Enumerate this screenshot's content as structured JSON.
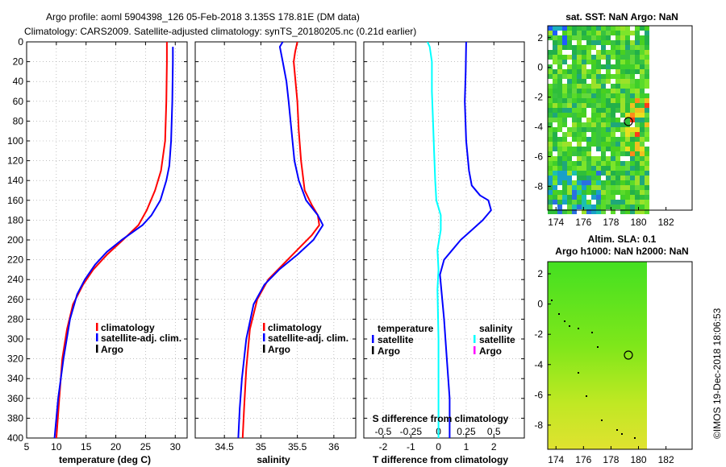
{
  "header": {
    "line1": "Argo profile: aoml 5904398_126 05-Feb-2018 3.135S 178.81E (DM data)",
    "line2": "Climatology: CARS2009. Satellite-adjusted climatology: synTS_20180205.nc (0.21d earlier)"
  },
  "colors": {
    "climatology": "#ff0000",
    "satellite": "#0000ff",
    "argo": "#000000",
    "sal_sat": "#00ffff",
    "sal_argo": "#ff00ff"
  },
  "side_note": "©IMOS 19-Dec-2018 18:06:53",
  "chart_data": [
    {
      "type": "line",
      "id": "temp",
      "xlabel": "temperature (deg C)",
      "ylabel": "",
      "xlim": [
        5,
        32
      ],
      "ylim": [
        400,
        0
      ],
      "xticks": [
        5,
        10,
        15,
        20,
        25,
        30
      ],
      "yticks": [
        0,
        20,
        40,
        60,
        80,
        100,
        120,
        140,
        160,
        180,
        200,
        220,
        240,
        260,
        280,
        300,
        320,
        340,
        360,
        380,
        400
      ],
      "legend": [
        "climatology",
        "satellite-adj. clim.",
        "Argo"
      ],
      "series": [
        {
          "name": "climatology",
          "color": "#ff0000",
          "points": [
            [
              28.6,
              0
            ],
            [
              28.6,
              20
            ],
            [
              28.5,
              60
            ],
            [
              28.3,
              100
            ],
            [
              27.6,
              130
            ],
            [
              26.6,
              150
            ],
            [
              25.2,
              170
            ],
            [
              23.8,
              185
            ],
            [
              21.2,
              200
            ],
            [
              18.5,
              215
            ],
            [
              16.2,
              230
            ],
            [
              14.5,
              245
            ],
            [
              12.8,
              265
            ],
            [
              11.8,
              290
            ],
            [
              11.0,
              320
            ],
            [
              10.5,
              360
            ],
            [
              10.0,
              400
            ]
          ]
        },
        {
          "name": "satellite-adj. clim.",
          "color": "#0000ff",
          "points": [
            [
              29.6,
              5
            ],
            [
              29.6,
              20
            ],
            [
              29.5,
              60
            ],
            [
              29.3,
              100
            ],
            [
              29.0,
              125
            ],
            [
              28.5,
              140
            ],
            [
              27.5,
              160
            ],
            [
              26.0,
              175
            ],
            [
              24.5,
              185
            ],
            [
              21.0,
              200
            ],
            [
              18.5,
              212
            ],
            [
              16.5,
              225
            ],
            [
              14.8,
              240
            ],
            [
              13.5,
              255
            ],
            [
              12.3,
              280
            ],
            [
              11.2,
              320
            ],
            [
              10.3,
              360
            ],
            [
              9.7,
              400
            ]
          ]
        },
        {
          "name": "Argo",
          "color": "#000000",
          "points": []
        }
      ]
    },
    {
      "type": "line",
      "id": "sal",
      "xlabel": "salinity",
      "ylabel": "",
      "xlim": [
        34.1,
        36.3
      ],
      "ylim": [
        400,
        0
      ],
      "xticks": [
        34.5,
        35,
        35.5,
        36
      ],
      "legend": [
        "climatology",
        "satellite-adj. clim.",
        "Argo"
      ],
      "series": [
        {
          "name": "climatology",
          "color": "#ff0000",
          "points": [
            [
              35.5,
              0
            ],
            [
              35.47,
              10
            ],
            [
              35.45,
              20
            ],
            [
              35.5,
              60
            ],
            [
              35.52,
              90
            ],
            [
              35.55,
              120
            ],
            [
              35.6,
              150
            ],
            [
              35.7,
              165
            ],
            [
              35.78,
              175
            ],
            [
              35.8,
              185
            ],
            [
              35.7,
              195
            ],
            [
              35.5,
              210
            ],
            [
              35.3,
              225
            ],
            [
              35.1,
              240
            ],
            [
              34.95,
              260
            ],
            [
              34.85,
              290
            ],
            [
              34.8,
              330
            ],
            [
              34.77,
              370
            ],
            [
              34.75,
              400
            ]
          ]
        },
        {
          "name": "satellite-adj. clim.",
          "color": "#0000ff",
          "points": [
            [
              35.3,
              0
            ],
            [
              35.26,
              5
            ],
            [
              35.3,
              20
            ],
            [
              35.35,
              40
            ],
            [
              35.38,
              60
            ],
            [
              35.42,
              90
            ],
            [
              35.46,
              120
            ],
            [
              35.52,
              140
            ],
            [
              35.62,
              160
            ],
            [
              35.78,
              175
            ],
            [
              35.85,
              185
            ],
            [
              35.72,
              200
            ],
            [
              35.5,
              215
            ],
            [
              35.25,
              230
            ],
            [
              35.05,
              245
            ],
            [
              34.9,
              265
            ],
            [
              34.8,
              300
            ],
            [
              34.74,
              340
            ],
            [
              34.71,
              370
            ],
            [
              34.69,
              400
            ]
          ]
        },
        {
          "name": "Argo",
          "color": "#000000",
          "points": []
        }
      ]
    },
    {
      "type": "line",
      "id": "diff",
      "xlabel": "T difference from climatology",
      "xlabel2": "S difference from climatology",
      "xlim": [
        -2.7,
        3.1
      ],
      "ylim": [
        400,
        0
      ],
      "xticks": [
        -2,
        -1,
        0,
        1,
        2
      ],
      "xticks2": [
        -0.5,
        -0.25,
        0,
        0.25,
        0.5
      ],
      "legend_temperature": "temperature",
      "legend_salinity": "salinity",
      "legend_items_left": [
        "satellite",
        "Argo"
      ],
      "legend_items_right": [
        "satellite",
        "Argo"
      ],
      "series": [
        {
          "name": "T satellite",
          "color": "#0000ff",
          "points": [
            [
              1.0,
              0
            ],
            [
              0.98,
              30
            ],
            [
              0.95,
              60
            ],
            [
              1.0,
              100
            ],
            [
              1.1,
              130
            ],
            [
              1.2,
              145
            ],
            [
              1.5,
              155
            ],
            [
              1.8,
              160
            ],
            [
              1.9,
              170
            ],
            [
              1.6,
              180
            ],
            [
              1.2,
              190
            ],
            [
              0.8,
              200
            ],
            [
              0.5,
              210
            ],
            [
              0.2,
              220
            ],
            [
              0.05,
              235
            ],
            [
              0.1,
              250
            ],
            [
              0.2,
              280
            ],
            [
              0.3,
              320
            ],
            [
              0.4,
              360
            ],
            [
              0.4,
              400
            ]
          ]
        },
        {
          "name": "S satellite",
          "color": "#00ffff",
          "points": [
            [
              -0.1,
              0
            ],
            [
              -0.08,
              5
            ],
            [
              -0.06,
              20
            ],
            [
              -0.06,
              50
            ],
            [
              -0.05,
              80
            ],
            [
              -0.04,
              110
            ],
            [
              -0.03,
              140
            ],
            [
              -0.02,
              160
            ],
            [
              0.02,
              175
            ],
            [
              0.02,
              190
            ],
            [
              -0.01,
              210
            ],
            [
              0.0,
              230
            ],
            [
              -0.01,
              250
            ],
            [
              0.0,
              300
            ],
            [
              0.0,
              350
            ],
            [
              0.0,
              400
            ]
          ]
        }
      ]
    }
  ],
  "maps": {
    "sst": {
      "title": "sat. SST: NaN Argo: NaN",
      "xticks": [
        174,
        176,
        178,
        180,
        182
      ],
      "yticks": [
        2,
        0,
        -2,
        -4,
        -6,
        -8
      ]
    },
    "sla": {
      "title1": "Altim. SLA: 0.1",
      "title2": "Argo h1000: NaN h2000: NaN",
      "xticks": [
        174,
        176,
        178,
        180,
        182
      ],
      "yticks": [
        2,
        0,
        -2,
        -4,
        -6,
        -8
      ]
    }
  }
}
